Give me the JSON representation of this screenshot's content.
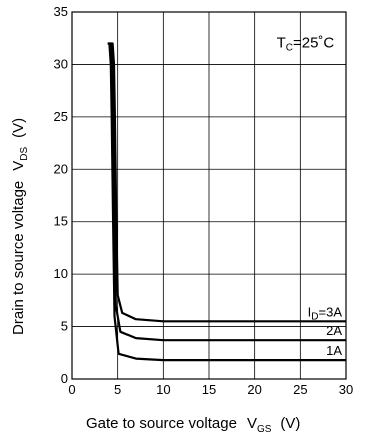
{
  "chart_data": {
    "type": "line",
    "xlabel": {
      "main": "Gate to source voltage",
      "symbol": "V",
      "sub": "GS",
      "unit": "(V)"
    },
    "ylabel": {
      "main": "Drain to source voltage",
      "symbol": "V",
      "sub": "DS",
      "unit": "(V)"
    },
    "xlim": [
      0,
      30
    ],
    "ylim": [
      0,
      35
    ],
    "xticks": [
      0,
      5,
      10,
      15,
      20,
      25,
      30
    ],
    "yticks": [
      0,
      5,
      10,
      15,
      20,
      25,
      30,
      35
    ],
    "grid": true,
    "annotation": {
      "pre": "T",
      "sub": "C",
      "post": "=25˚C"
    },
    "series": [
      {
        "label_pre": "I",
        "label_sub": "D",
        "label_post": "=3A",
        "x": [
          4.2,
          4.45,
          4.6,
          4.7,
          4.85,
          5.0,
          5.5,
          7,
          10,
          20,
          30
        ],
        "y": [
          32,
          32,
          30,
          25,
          15,
          8,
          6.3,
          5.7,
          5.5,
          5.5,
          5.5
        ]
      },
      {
        "label_pre": "",
        "label_sub": "",
        "label_post": "2A",
        "x": [
          4.05,
          4.25,
          4.4,
          4.5,
          4.65,
          4.8,
          5.3,
          7,
          10,
          20,
          30
        ],
        "y": [
          32,
          32,
          30,
          25,
          15,
          7,
          4.5,
          3.9,
          3.7,
          3.7,
          3.7
        ]
      },
      {
        "label_pre": "",
        "label_sub": "",
        "label_post": "1A",
        "x": [
          3.9,
          4.1,
          4.25,
          4.35,
          4.5,
          4.65,
          5.1,
          7,
          10,
          20,
          30
        ],
        "y": [
          32,
          32,
          30,
          25,
          15,
          6,
          2.4,
          1.95,
          1.8,
          1.8,
          1.8
        ]
      }
    ]
  }
}
